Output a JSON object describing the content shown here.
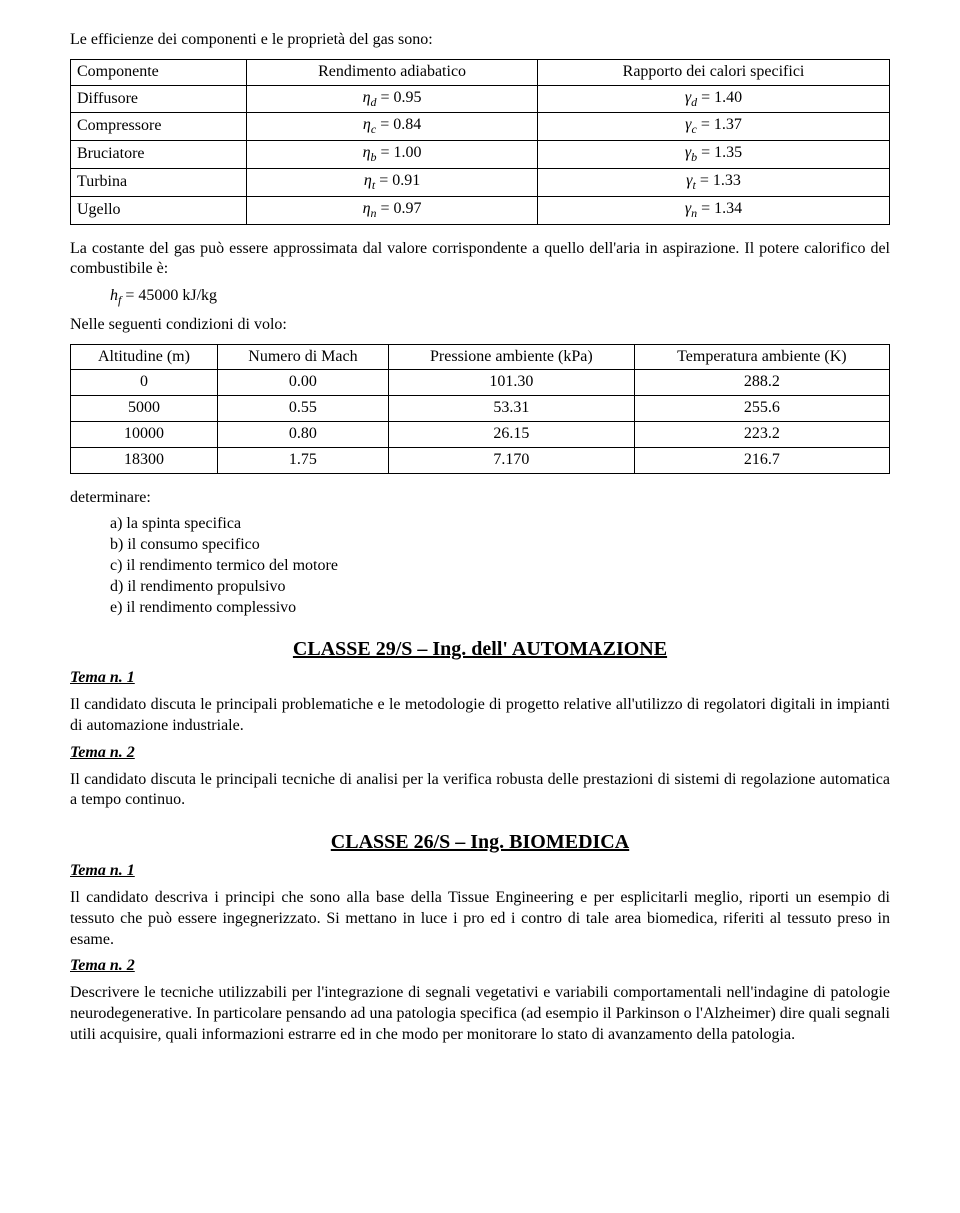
{
  "intro": "Le efficienze dei componenti e le proprietà del gas sono:",
  "table1": {
    "headers": [
      "Componente",
      "Rendimento adiabatico",
      "Rapporto dei calori specifici"
    ],
    "rows": [
      {
        "c": "Diffusore",
        "eta_sym": "η",
        "eta_sub": "d",
        "eta_val": "0.95",
        "g_sym": "γ",
        "g_sub": "d",
        "g_val": "1.40"
      },
      {
        "c": "Compressore",
        "eta_sym": "η",
        "eta_sub": "c",
        "eta_val": "0.84",
        "g_sym": "γ",
        "g_sub": "c",
        "g_val": "1.37"
      },
      {
        "c": "Bruciatore",
        "eta_sym": "η",
        "eta_sub": "b",
        "eta_val": "1.00",
        "g_sym": "γ",
        "g_sub": "b",
        "g_val": "1.35"
      },
      {
        "c": "Turbina",
        "eta_sym": "η",
        "eta_sub": "t",
        "eta_val": "0.91",
        "g_sym": "γ",
        "g_sub": "t",
        "g_val": "1.33"
      },
      {
        "c": "Ugello",
        "eta_sym": "η",
        "eta_sub": "n",
        "eta_val": "0.97",
        "g_sym": "γ",
        "g_sub": "n",
        "g_val": "1.34"
      }
    ]
  },
  "para1": "La costante del gas può essere approssimata dal valore corrispondente a quello dell'aria in aspirazione. Il potere calorifico del combustibile è:",
  "eq_hf_lhs": "h",
  "eq_hf_sub": "f",
  "eq_hf_rhs": " = 45000  kJ/kg",
  "para2": "Nelle seguenti condizioni di volo:",
  "table2": {
    "headers": [
      "Altitudine (m)",
      "Numero di Mach",
      "Pressione ambiente (kPa)",
      "Temperatura ambiente (K)"
    ],
    "rows": [
      [
        "0",
        "0.00",
        "101.30",
        "288.2"
      ],
      [
        "5000",
        "0.55",
        "53.31",
        "255.6"
      ],
      [
        "10000",
        "0.80",
        "26.15",
        "223.2"
      ],
      [
        "18300",
        "1.75",
        "7.170",
        "216.7"
      ]
    ]
  },
  "det_label": "determinare:",
  "det_items": [
    "a) la spinta specifica",
    "b) il consumo specifico",
    "c) il rendimento termico del motore",
    "d) il rendimento propulsivo",
    "e) il rendimento complessivo"
  ],
  "h1": "CLASSE 29/S – Ing. dell' AUTOMAZIONE",
  "tema1": "Tema n. 1",
  "s1_t1": "Il candidato discuta le principali problematiche e le metodologie di progetto relative all'utilizzo di regolatori digitali in impianti di automazione industriale.",
  "tema2": "Tema n. 2",
  "s1_t2": "Il candidato discuta le principali tecniche di analisi per la verifica robusta delle prestazioni di sistemi di regolazione automatica a tempo continuo.",
  "h2": "CLASSE 26/S – Ing. BIOMEDICA",
  "s2_t1": "Il candidato descriva i principi che sono alla base della  Tissue Engineering e per esplicitarli meglio, riporti un esempio di  tessuto che può essere ingegnerizzato.  Si mettano in luce i pro ed i contro di tale area biomedica, riferiti al tessuto preso in esame.",
  "s2_t2": "Descrivere le tecniche utilizzabili per l'integrazione di segnali vegetativi e variabili comportamentali nell'indagine di patologie neurodegenerative. In particolare pensando ad una patologia specifica (ad esempio il Parkinson o l'Alzheimer) dire quali segnali utili acquisire, quali informazioni estrarre ed in che modo per monitorare lo stato di avanzamento della patologia."
}
